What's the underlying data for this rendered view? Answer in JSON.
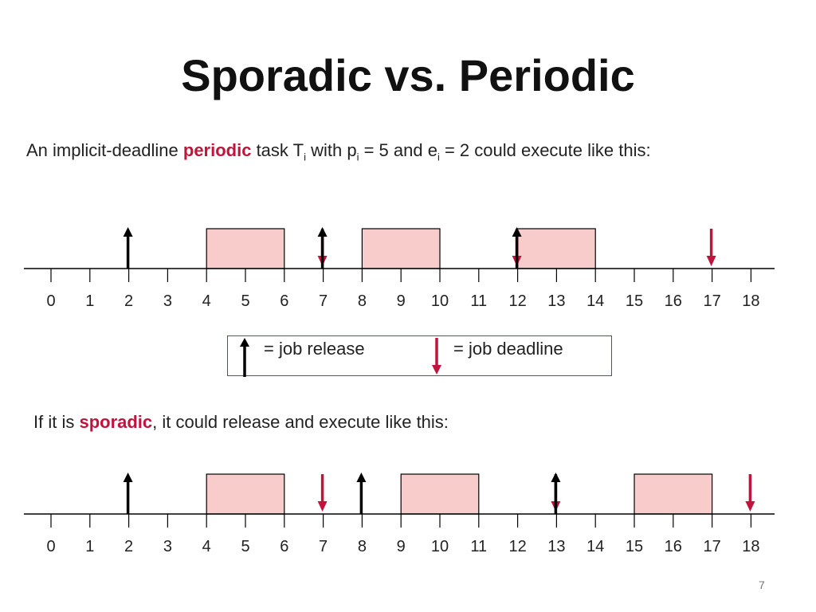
{
  "slide": {
    "title": "Sporadic vs. Periodic",
    "slide_number": "7"
  },
  "intro": {
    "prefix": "An implicit-deadline ",
    "highlight": "periodic",
    "task_text": " task T",
    "task_sub": "i",
    "with_text": " with p",
    "p_sub": "i",
    "p_value": " = 5 and e",
    "e_sub": "i",
    "rest": " = 2 could execute like this:"
  },
  "legend": {
    "release_label": "= job release",
    "deadline_label": "= job deadline"
  },
  "sporadic_text": {
    "prefix": "If it is ",
    "highlight": "sporadic",
    "rest": ", it could  release and execute like this:"
  },
  "colors": {
    "release_arrow": "#000000",
    "deadline_arrow": "#c0143c",
    "execution_fill": "#f9cccc",
    "highlight": "#c0143c"
  },
  "chart_data": [
    {
      "type": "timeline",
      "ticks": [
        "0",
        "1",
        "2",
        "3",
        "4",
        "5",
        "6",
        "7",
        "8",
        "9",
        "10",
        "11",
        "12",
        "13",
        "14",
        "15",
        "16",
        "17",
        "18"
      ],
      "releases": [
        2,
        7,
        12
      ],
      "deadlines": [
        7,
        12,
        17
      ],
      "executions": [
        [
          4,
          6
        ],
        [
          8,
          10
        ],
        [
          12,
          14
        ]
      ]
    },
    {
      "type": "timeline",
      "ticks": [
        "0",
        "1",
        "2",
        "3",
        "4",
        "5",
        "6",
        "7",
        "8",
        "9",
        "10",
        "11",
        "12",
        "13",
        "14",
        "15",
        "16",
        "17",
        "18"
      ],
      "releases": [
        2,
        8,
        13
      ],
      "deadlines": [
        7,
        13,
        18
      ],
      "executions": [
        [
          4,
          6
        ],
        [
          9,
          11
        ],
        [
          15,
          17
        ]
      ]
    }
  ]
}
